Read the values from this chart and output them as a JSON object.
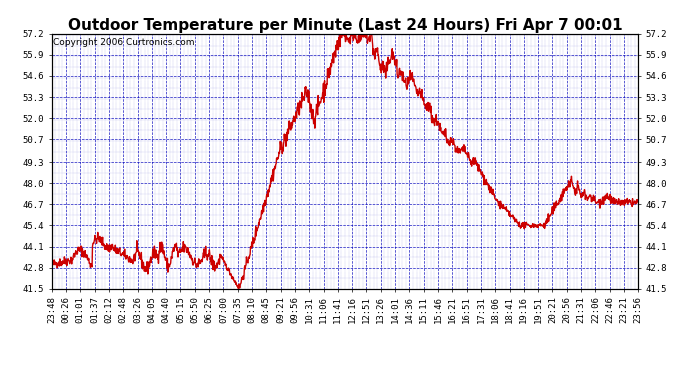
{
  "title": "Outdoor Temperature per Minute (Last 24 Hours) Fri Apr 7 00:01",
  "copyright": "Copyright 2006 Curtronics.com",
  "line_color": "#cc0000",
  "bg_color": "#ffffff",
  "plot_bg_color": "#ffffff",
  "grid_color": "#0000bb",
  "y_ticks": [
    41.5,
    42.8,
    44.1,
    45.4,
    46.7,
    48.0,
    49.3,
    50.7,
    52.0,
    53.3,
    54.6,
    55.9,
    57.2
  ],
  "ylim": [
    41.5,
    57.2
  ],
  "x_labels": [
    "23:48",
    "00:26",
    "01:01",
    "01:37",
    "02:12",
    "02:48",
    "03:26",
    "04:05",
    "04:40",
    "05:15",
    "05:50",
    "06:25",
    "07:00",
    "07:35",
    "08:10",
    "08:45",
    "09:21",
    "09:56",
    "10:31",
    "11:06",
    "11:41",
    "12:16",
    "12:51",
    "13:26",
    "14:01",
    "14:36",
    "15:11",
    "15:46",
    "16:21",
    "16:51",
    "17:31",
    "18:06",
    "18:41",
    "19:16",
    "19:51",
    "20:21",
    "20:56",
    "21:31",
    "22:06",
    "22:46",
    "23:21",
    "23:56"
  ],
  "title_fontsize": 11,
  "tick_fontsize": 6.5,
  "copyright_fontsize": 6.5,
  "linewidth": 1.0
}
